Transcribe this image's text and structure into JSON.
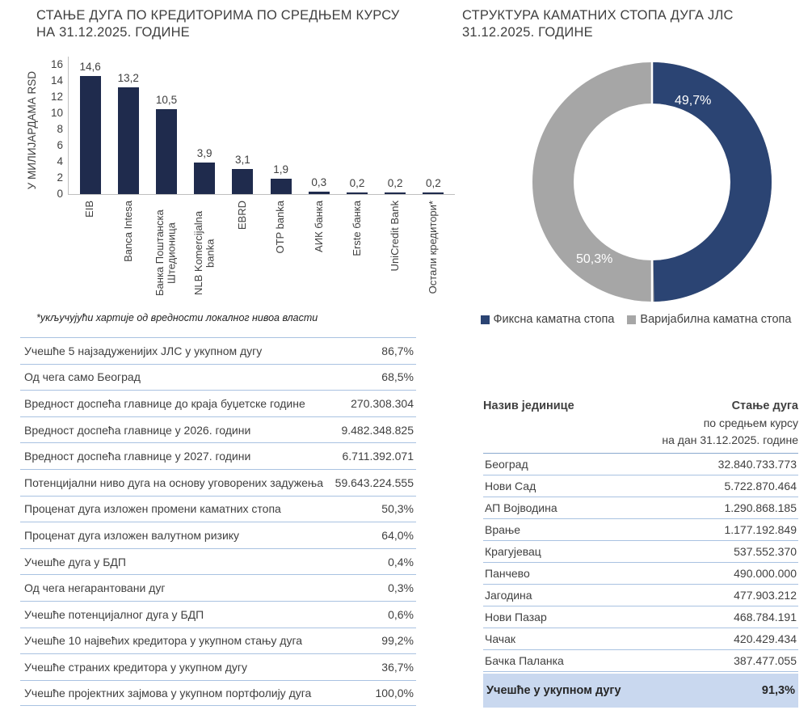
{
  "left_chart": {
    "title_lines": [
      "СТАЊЕ ДУГА ПО КРЕДИТОРИМА ПО СРЕДЊЕМ КУРСУ",
      "НА 31.12.2025. ГОДИНЕ"
    ],
    "footnote": "*укључујући хартије од вредности локалног нивоа власти"
  },
  "right_chart": {
    "title_lines": [
      "СТРУКТУРА КАМАТНИХ СТОПА ДУГА ЈЛС",
      "31.12.2025. ГОДИНЕ"
    ]
  },
  "chart_data": [
    {
      "type": "bar",
      "title": "СТАЊЕ ДУГА ПО КРЕДИТОРИМА ПО СРЕДЊЕМ КУРСУ НА 31.12.2025. ГОДИНЕ",
      "xlabel": "",
      "ylabel": "У МИЛИЈАРДАМА RSD",
      "ylim": [
        0,
        16
      ],
      "ytick_step": 2,
      "grid": false,
      "bar_color": "#1f2b4d",
      "categories": [
        "EIB",
        "Banca Intesa",
        "Банка Поштанска Штедионица",
        "NLB Komercijalna banka",
        "EBRD",
        "OTP banka",
        "АИК банка",
        "Erste банка",
        "UniCredit Bank",
        "Остали кредитори*"
      ],
      "values": [
        14.6,
        13.2,
        10.5,
        3.9,
        3.1,
        1.9,
        0.3,
        0.2,
        0.2,
        0.2
      ],
      "value_labels": [
        "14,6",
        "13,2",
        "10,5",
        "3,9",
        "3,1",
        "1,9",
        "0,3",
        "0,2",
        "0,2",
        "0,2"
      ]
    },
    {
      "type": "pie",
      "subtype": "donut",
      "title": "СТРУКТУРА КАМАТНИХ СТОПА ДУГА ЈЛС 31.12.2025. ГОДИНЕ",
      "legend_position": "bottom",
      "slices": [
        {
          "label": "Фиксна каматна стопа",
          "value": 49.7,
          "display": "49,7%",
          "color": "#2b4473"
        },
        {
          "label": "Варијабилна каматна стопа",
          "value": 50.3,
          "display": "50,3%",
          "color": "#a6a6a6"
        }
      ]
    }
  ],
  "key_figures_table": {
    "rows": [
      {
        "label": "Учешће 5 најзадуженијих ЈЛС у укупном дугу",
        "value": "86,7%"
      },
      {
        "label": "Од чега само Београд",
        "value": "68,5%"
      },
      {
        "label": "Вредност доспећа главнице до краја буџетске године",
        "value": "270.308.304"
      },
      {
        "label": "Вредност доспећа главнице у 2026. години",
        "value": "9.482.348.825"
      },
      {
        "label": "Вредност доспећа главнице у 2027. години",
        "value": "6.711.392.071"
      },
      {
        "label": "Потенцијални ниво дуга на основу уговорених задужења",
        "value": "59.643.224.555"
      },
      {
        "label": "Проценат дуга изложен промени каматних стопа",
        "value": "50,3%"
      },
      {
        "label": "Проценат дуга изложен валутном ризику",
        "value": "64,0%"
      },
      {
        "label": "Учешће дуга у БДП",
        "value": "0,4%"
      },
      {
        "label": "Од чега негарантовани дуг",
        "value": "0,3%"
      },
      {
        "label": "Учешће потенцијалног дуга у БДП",
        "value": "0,6%"
      },
      {
        "label": "Учешће 10 највећих кредитора у укупном стању дуга",
        "value": "99,2%"
      },
      {
        "label": "Учешће страних кредитора у укупном дугу",
        "value": "36,7%"
      },
      {
        "label": "Учешће пројектних зајмова у укупном портфолију дуга",
        "value": "100,0%"
      }
    ]
  },
  "debt_by_unit_table": {
    "header": {
      "col1": "Назив јединице",
      "col2_lines": [
        "Стање дуга",
        "по средњем курсу",
        "на дан 31.12.2025. године"
      ]
    },
    "rows": [
      {
        "label": "Београд",
        "value": "32.840.733.773"
      },
      {
        "label": "Нови Сад",
        "value": "5.722.870.464"
      },
      {
        "label": "АП Војводина",
        "value": "1.290.868.185"
      },
      {
        "label": "Врање",
        "value": "1.177.192.849"
      },
      {
        "label": "Крагујевац",
        "value": "537.552.370"
      },
      {
        "label": "Панчево",
        "value": "490.000.000"
      },
      {
        "label": "Јагодина",
        "value": "477.903.212"
      },
      {
        "label": "Нови Пазар",
        "value": "468.784.191"
      },
      {
        "label": "Чачак",
        "value": "420.429.434"
      },
      {
        "label": "Бачка Паланка",
        "value": "387.477.055"
      }
    ],
    "total_row": {
      "label": "Учешће у укупном дугу",
      "value": "91,3%"
    }
  },
  "colors": {
    "bar": "#1f2b4d",
    "donut_fixed": "#2b4473",
    "donut_variable": "#a6a6a6",
    "table_line": "#a9c2e1",
    "total_row_background": "#c9d8ef"
  }
}
